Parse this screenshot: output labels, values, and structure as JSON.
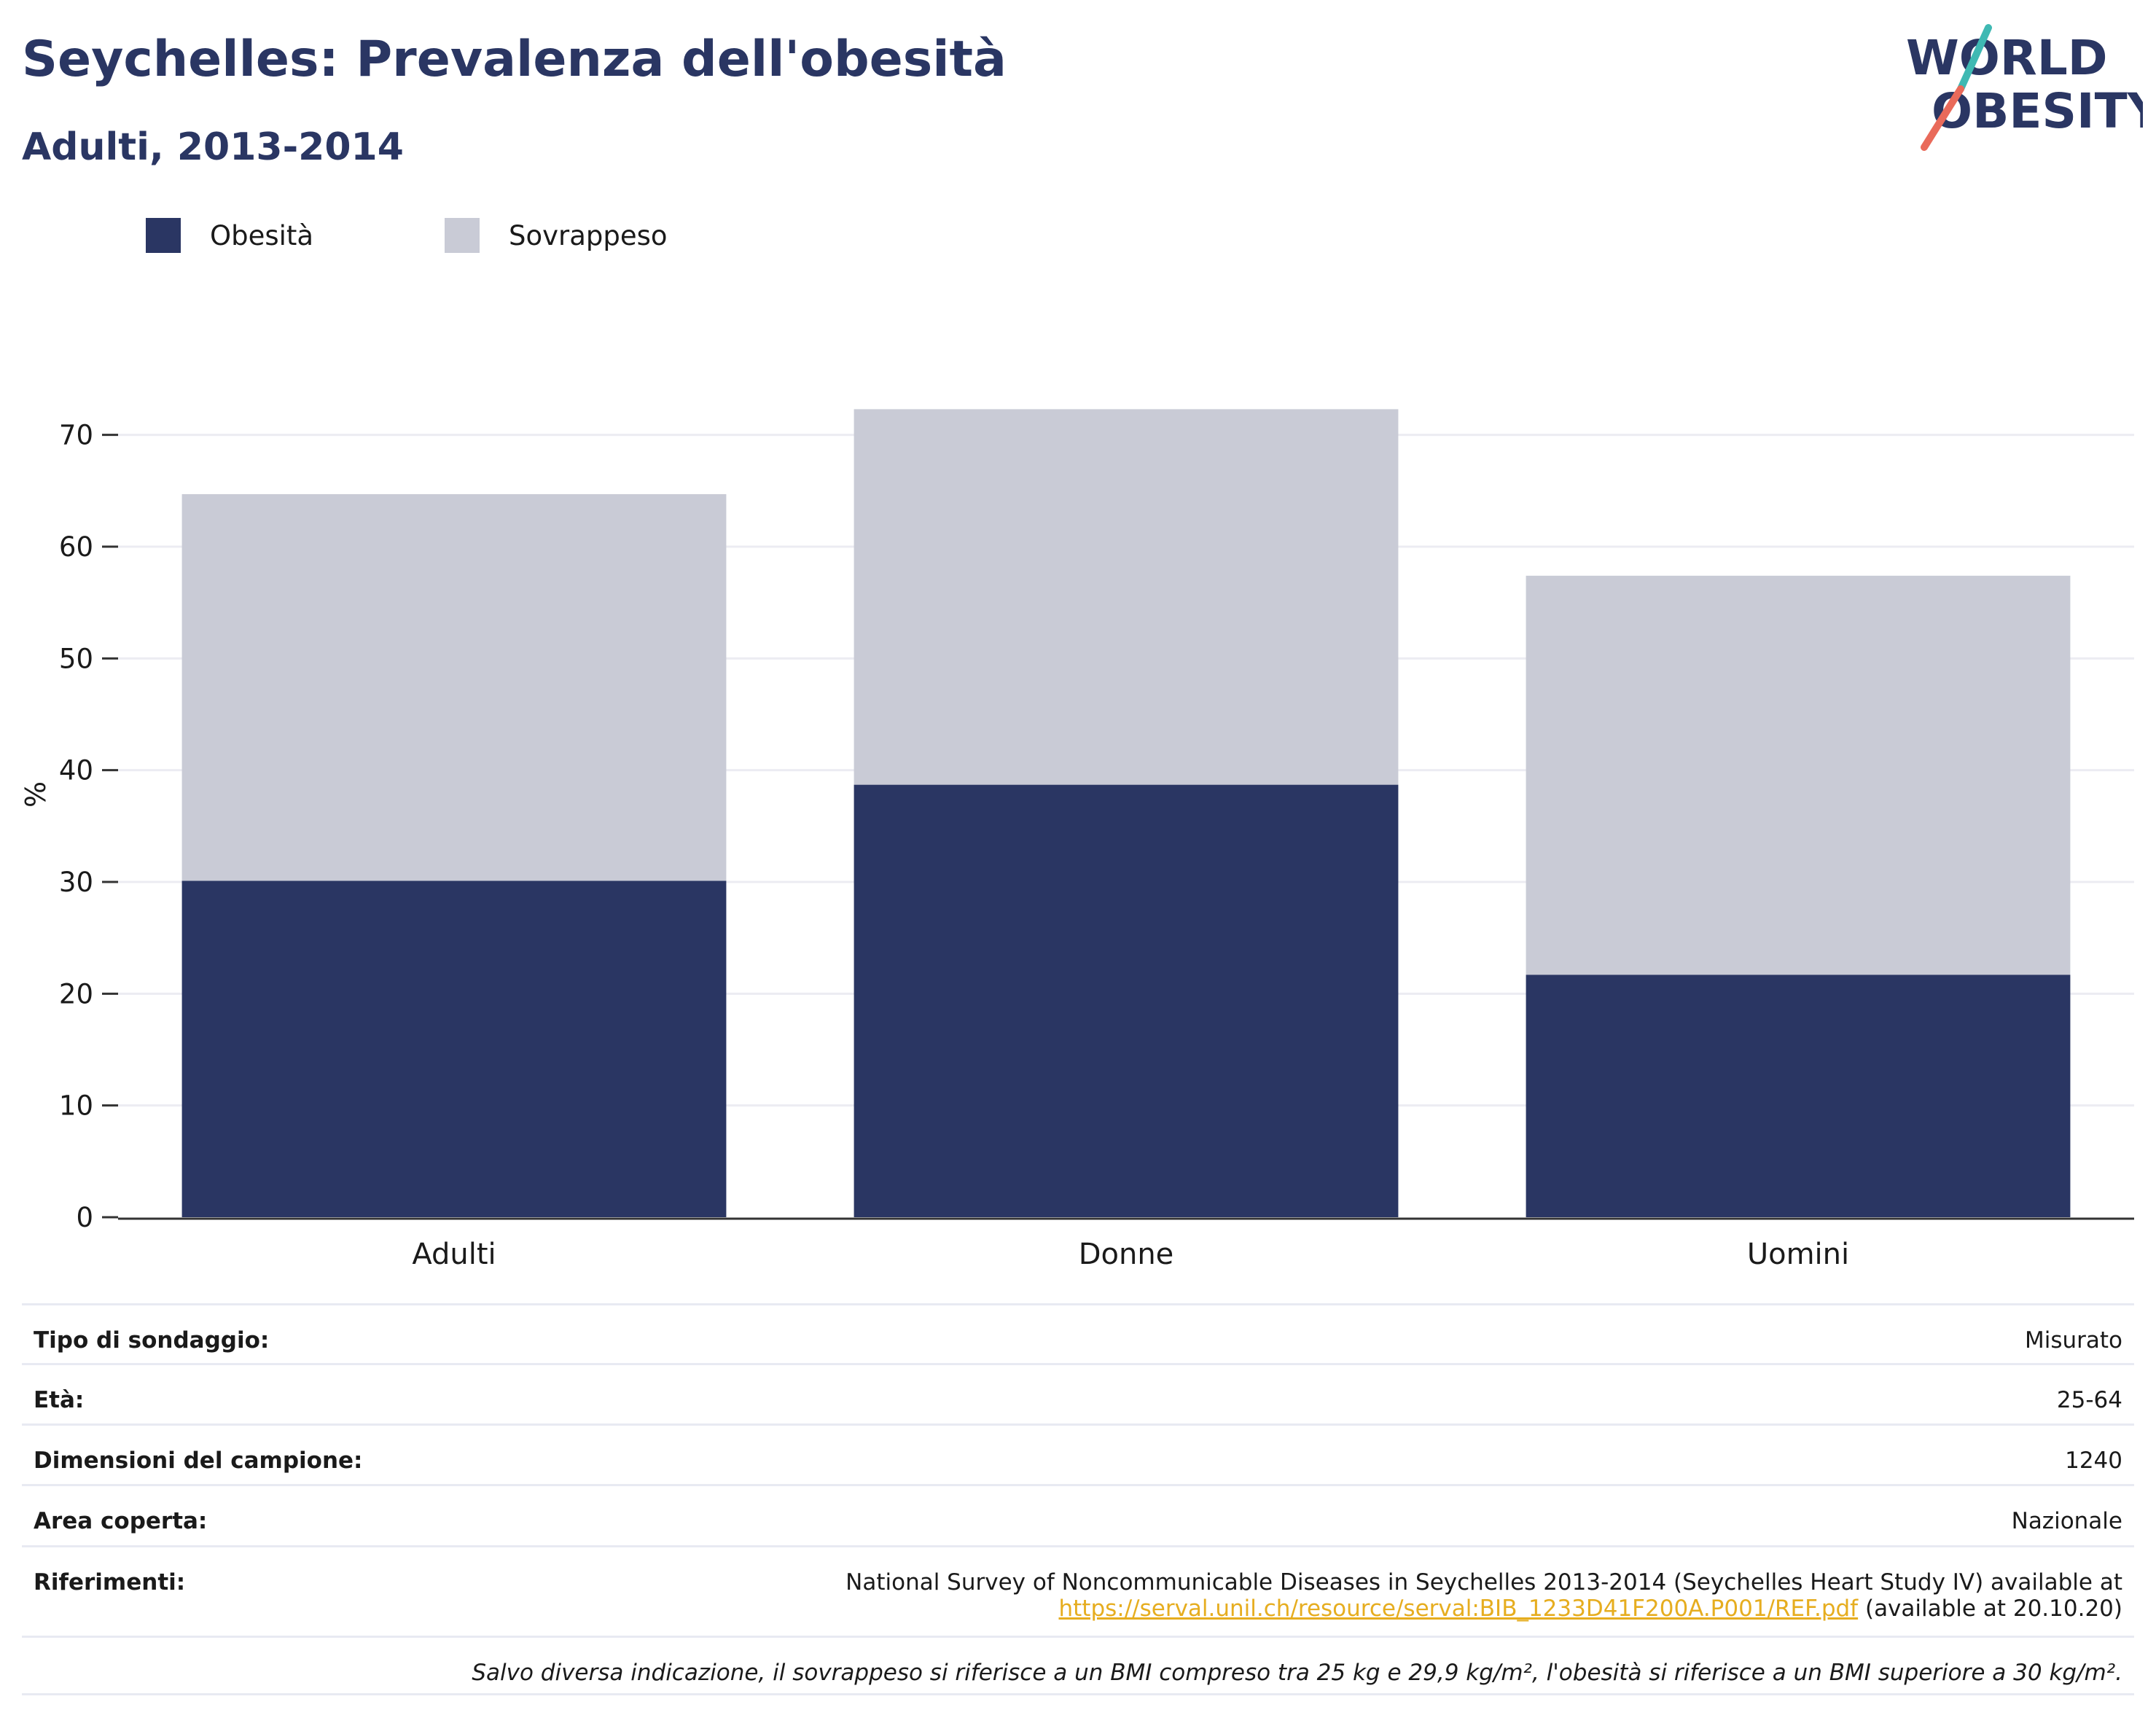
{
  "title": "Seychelles: Prevalenza dell'obesità",
  "subtitle": "Adulti, 2013-2014",
  "logo": {
    "line1": "WORLD",
    "line2": "OBESITY"
  },
  "colors": {
    "obesity": "#2a3663",
    "overweight": "#c9cbd6",
    "title": "#2a3663",
    "link": "#e6ad1f",
    "grid": "#ececf2",
    "logo_teal": "#3fb9b3",
    "logo_coral": "#e96a5a"
  },
  "legend": [
    {
      "label": "Obesità",
      "color": "#2a3663"
    },
    {
      "label": "Sovrappeso",
      "color": "#c9cbd6"
    }
  ],
  "chart_data": {
    "type": "bar",
    "stacked": true,
    "categories": [
      "Adulti",
      "Donne",
      "Uomini"
    ],
    "series": [
      {
        "name": "Obesità",
        "values": [
          30.1,
          38.7,
          21.7
        ],
        "color": "#2a3663"
      },
      {
        "name": "Sovrappeso",
        "values": [
          34.6,
          33.6,
          35.7
        ],
        "color": "#c9cbd6"
      }
    ],
    "ylabel": "%",
    "ylim": [
      0,
      75
    ],
    "yticks": [
      0,
      10,
      20,
      30,
      40,
      50,
      60,
      70
    ],
    "grid": true,
    "legend_position": "top-left"
  },
  "info": {
    "rows": [
      {
        "label": "Tipo di sondaggio:",
        "value": "Misurato"
      },
      {
        "label": "Età:",
        "value": "25-64"
      },
      {
        "label": "Dimensioni del campione:",
        "value": "1240"
      },
      {
        "label": "Area coperta:",
        "value": "Nazionale"
      }
    ],
    "references": {
      "label": "Riferimenti:",
      "text": "National Survey of Noncommunicable Diseases in Seychelles 2013-2014 (Seychelles Heart Study IV) available at",
      "link": "https://serval.unil.ch/resource/serval:BIB_1233D41F200A.P001/REF.pdf",
      "suffix": "(available at 20.10.20)"
    },
    "note": "Salvo diversa indicazione, il sovrappeso si riferisce a un BMI compreso tra 25 kg e 29,9 kg/m², l'obesità si riferisce a un BMI superiore a 30 kg/m²."
  }
}
